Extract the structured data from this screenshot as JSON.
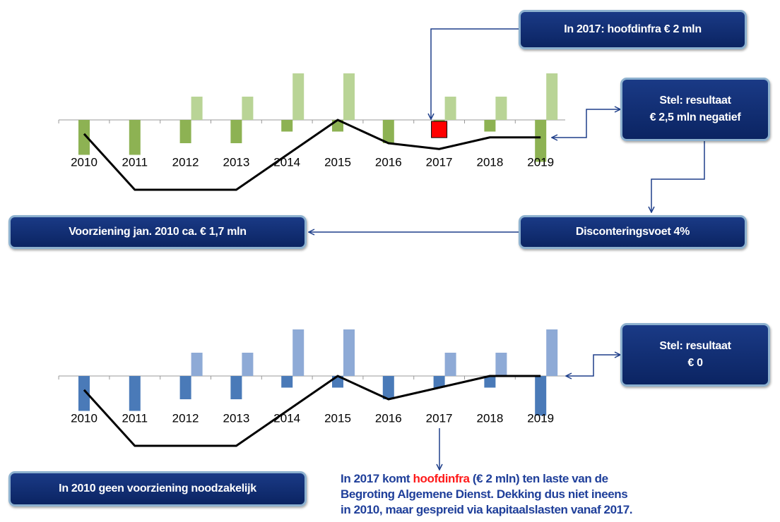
{
  "charts": [
    {
      "type": "bar",
      "categories": [
        "2010",
        "2011",
        "2012",
        "2013",
        "2014",
        "2015",
        "2016",
        "2017",
        "2018",
        "2019"
      ],
      "series": [
        {
          "color": "#8db253",
          "values": [
            -1.5,
            -1.5,
            -1,
            -1,
            -0.5,
            -0.5,
            -1,
            -0.5,
            -0.5,
            -1.8
          ]
        },
        {
          "color": "#b9d496",
          "values": [
            null,
            null,
            1,
            1,
            2,
            2,
            null,
            1,
            1,
            2
          ]
        }
      ],
      "line": {
        "color": "#000000",
        "values": [
          -0.6,
          -3,
          -3,
          -3,
          -1.5,
          0,
          -1,
          -1.25,
          -0.75,
          -0.75
        ]
      },
      "marker": {
        "category_index": 7,
        "value": -0.7,
        "color": "#ff0000"
      }
    },
    {
      "type": "bar",
      "categories": [
        "2010",
        "2011",
        "2012",
        "2013",
        "2014",
        "2015",
        "2016",
        "2017",
        "2018",
        "2019"
      ],
      "series": [
        {
          "color": "#4a7ab8",
          "values": [
            -1.5,
            -1.5,
            -1,
            -1,
            -0.5,
            -0.5,
            -1,
            -0.5,
            -0.5,
            -1.7
          ]
        },
        {
          "color": "#8eaad6",
          "values": [
            null,
            null,
            1,
            1,
            2,
            2,
            null,
            1,
            1,
            2
          ]
        }
      ],
      "line": {
        "color": "#000000",
        "values": [
          -0.6,
          -3,
          -3,
          -3,
          -1.5,
          0,
          -1,
          -0.5,
          0,
          0
        ]
      }
    }
  ],
  "boxes": [
    {
      "lines": [
        "In 2017: hoofdinfra € 2 mln"
      ]
    },
    {
      "lines": [
        "Stel: resultaat",
        "€ 2,5 mln negatief"
      ]
    },
    {
      "lines": [
        "Voorziening jan. 2010 ca. € 1,7 mln"
      ]
    },
    {
      "lines": [
        "Disconteringsvoet 4%"
      ]
    },
    {
      "lines": [
        "Stel: resultaat",
        "€ 0"
      ]
    },
    {
      "lines": [
        "In 2010 geen voorziening noodzakelijk"
      ]
    }
  ],
  "note": {
    "lines": [
      {
        "before": "In 2017 komt",
        "highlight": "hoofdinfra",
        "after": "(€ 2 mln) ten laste van de"
      },
      {
        "text": "Begroting Algemene Dienst. Dekking dus niet ineens"
      },
      {
        "text": "in 2010, maar gespreid via kapitaalslasten vanaf 2017."
      }
    ]
  }
}
